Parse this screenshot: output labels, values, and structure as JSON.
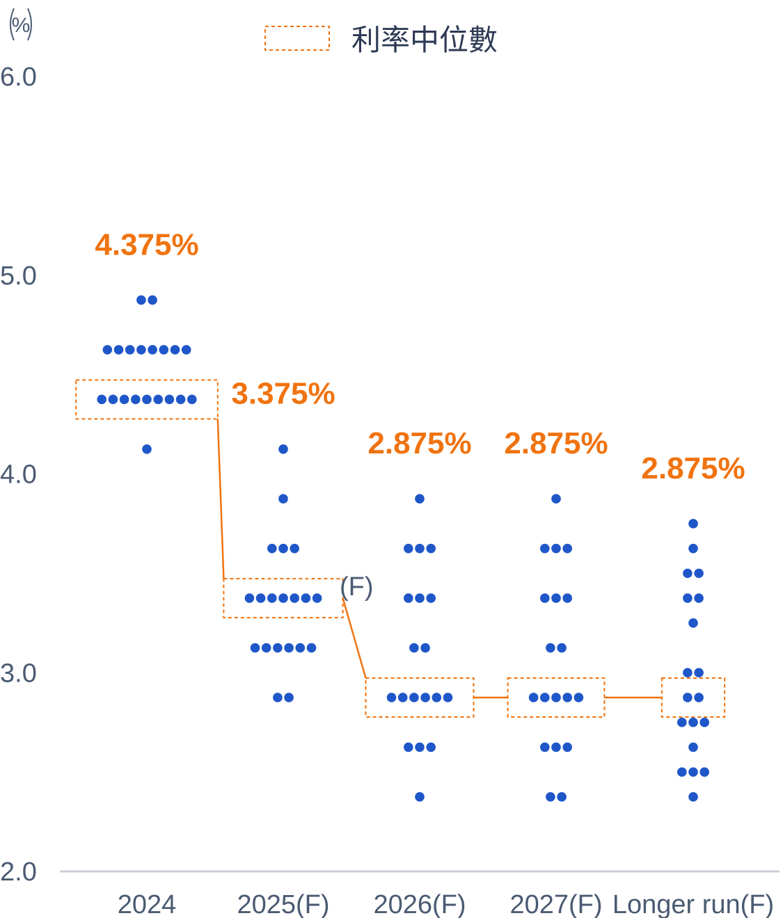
{
  "chart_data": {
    "type": "scatter",
    "unit_label": "%",
    "y_ticks": [
      "6.0",
      "5.0",
      "4.0",
      "3.0",
      "2.0"
    ],
    "ylim": [
      2.0,
      6.0
    ],
    "categories": [
      "2024",
      "2025(F)",
      "2026(F)",
      "2027(F)",
      "Longer run(F)"
    ],
    "legend": {
      "label": "利率中位數",
      "placement": "top-center"
    },
    "note": "(F)",
    "colors": {
      "dot": "#1f57c9",
      "median": "#f0730f",
      "axis": "#c8cdd6",
      "text": "#4a5a72"
    },
    "median_labels": [
      "4.375%",
      "3.375%",
      "2.875%",
      "2.875%",
      "2.875%"
    ],
    "medians": [
      4.375,
      3.375,
      2.875,
      2.875,
      2.875
    ],
    "dots": [
      [
        [
          4.875,
          2
        ],
        [
          4.625,
          8
        ],
        [
          4.375,
          9
        ],
        [
          4.125,
          1
        ]
      ],
      [
        [
          4.125,
          1
        ],
        [
          3.875,
          1
        ],
        [
          3.625,
          3
        ],
        [
          3.375,
          7
        ],
        [
          3.125,
          6
        ],
        [
          2.875,
          2
        ]
      ],
      [
        [
          3.875,
          1
        ],
        [
          3.625,
          3
        ],
        [
          3.375,
          3
        ],
        [
          3.125,
          2
        ],
        [
          2.875,
          6
        ],
        [
          2.625,
          3
        ],
        [
          2.375,
          1
        ]
      ],
      [
        [
          3.875,
          1
        ],
        [
          3.625,
          3
        ],
        [
          3.375,
          3
        ],
        [
          3.125,
          2
        ],
        [
          2.875,
          5
        ],
        [
          2.625,
          3
        ],
        [
          2.375,
          2
        ]
      ],
      [
        [
          3.75,
          1
        ],
        [
          3.625,
          1
        ],
        [
          3.5,
          2
        ],
        [
          3.375,
          2
        ],
        [
          3.25,
          1
        ],
        [
          3.0,
          2
        ],
        [
          2.875,
          2
        ],
        [
          2.75,
          3
        ],
        [
          2.625,
          1
        ],
        [
          2.5,
          3
        ],
        [
          2.375,
          1
        ]
      ]
    ]
  }
}
